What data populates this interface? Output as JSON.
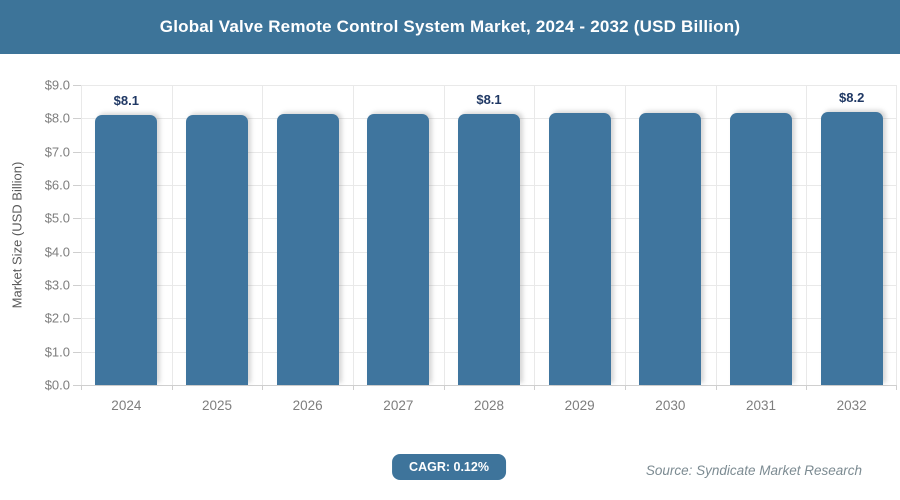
{
  "header": {
    "title": "Global Valve Remote Control System Market, 2024 - 2032 (USD Billion)",
    "bg_color": "#3D7499",
    "text_color": "#FFFFFF"
  },
  "chart_data": {
    "type": "bar",
    "title": "Global Valve Remote Control System Market, 2024 - 2032 (USD Billion)",
    "categories": [
      "2024",
      "2025",
      "2026",
      "2027",
      "2028",
      "2029",
      "2030",
      "2031",
      "2032"
    ],
    "values": [
      8.1,
      8.11,
      8.12,
      8.13,
      8.14,
      8.15,
      8.16,
      8.17,
      8.18
    ],
    "bar_labels": [
      "$8.1",
      "",
      "",
      "",
      "$8.1",
      "",
      "",
      "",
      "$8.2"
    ],
    "xlabel": "",
    "ylabel": "Market Size (USD Billion)",
    "ylim": [
      0,
      9
    ],
    "ytick_step": 1,
    "ytick_labels": [
      "$0.0",
      "$1.0",
      "$2.0",
      "$3.0",
      "$4.0",
      "$5.0",
      "$6.0",
      "$7.0",
      "$8.0",
      "$9.0"
    ],
    "grid": true,
    "legend": false,
    "bar_color": "#3F759E",
    "value_label_color": "#1F3864"
  },
  "footer": {
    "cagr_label": "CAGR: 0.12%",
    "source": "Source: Syndicate Market Research"
  }
}
